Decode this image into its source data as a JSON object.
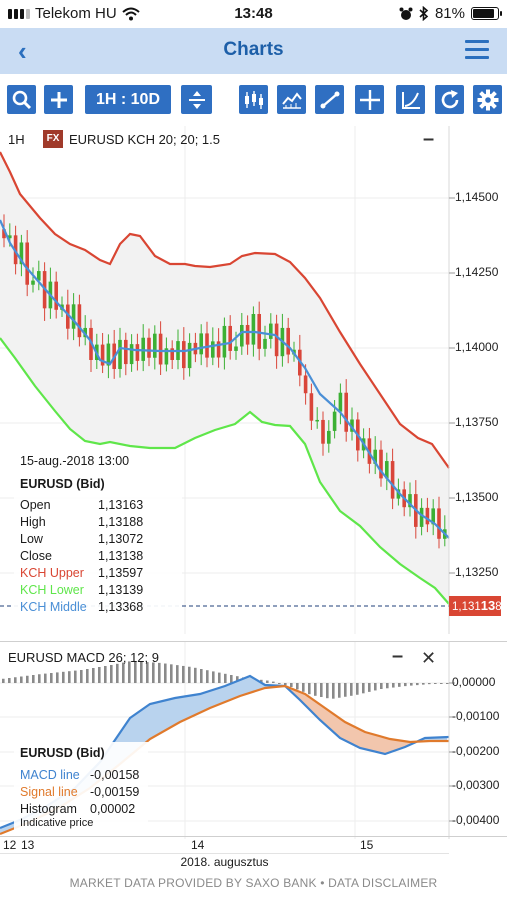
{
  "status": {
    "carrier": "Telekom HU",
    "time": "13:48",
    "battery": "81%"
  },
  "nav": {
    "title": "Charts"
  },
  "toolbar": {
    "timeframe": "1H : 10D"
  },
  "main": {
    "timeframe_label": "1H",
    "fx_badge": "FX",
    "instrument_label": "EURUSD  KCH 20; 20; 1.5",
    "collapse_symbol": "–",
    "price_axis": [
      "1,14500",
      "1,14250",
      "1,14000",
      "1,13750",
      "1,13500",
      "1,13250"
    ],
    "current_price": {
      "prefix": "1,131",
      "big": "13",
      "suffix": "8"
    },
    "tooltip": {
      "date": "15-aug.-2018 13:00",
      "title": "EURUSD (Bid)",
      "rows": [
        {
          "key": "Open",
          "value": "1,13163"
        },
        {
          "key": "High",
          "value": "1,13188"
        },
        {
          "key": "Low",
          "value": "1,13072"
        },
        {
          "key": "Close",
          "value": "1,13138"
        },
        {
          "key": "KCH Upper",
          "value": "1,13597"
        },
        {
          "key": "KCH Lower",
          "value": "1,13139"
        },
        {
          "key": "KCH Middle",
          "value": "1,13368"
        }
      ]
    }
  },
  "macd": {
    "label": "EURUSD  MACD 26; 12; 9",
    "minimize_symbol": "–",
    "close_symbol": "✕",
    "axis": [
      "0,00000",
      "-0,00100",
      "-0,00200",
      "-0,00300",
      "-0,00400"
    ],
    "tooltip": {
      "title": "EURUSD (Bid)",
      "rows": [
        {
          "key": "MACD line",
          "value": "-0,00158"
        },
        {
          "key": "Signal line",
          "value": "-0,00159"
        },
        {
          "key": "Histogram",
          "value": "0,00002"
        }
      ],
      "note": "Indicative price"
    }
  },
  "xaxis": {
    "labels": [
      "12",
      "13",
      "14",
      "15"
    ],
    "month": "2018. augusztus"
  },
  "footer": "MARKET DATA PROVIDED BY SAXO BANK • DATA DISCLAIMER",
  "colors": {
    "accent": "#2f6fc2",
    "nav_bg": "#c9dcf3",
    "up": "#3cb034",
    "down": "#d9463a",
    "kch_upper": "#d94633",
    "kch_lower": "#5fe64a",
    "kch_middle": "#4a8fd6",
    "price_tag": "#d94633"
  }
}
